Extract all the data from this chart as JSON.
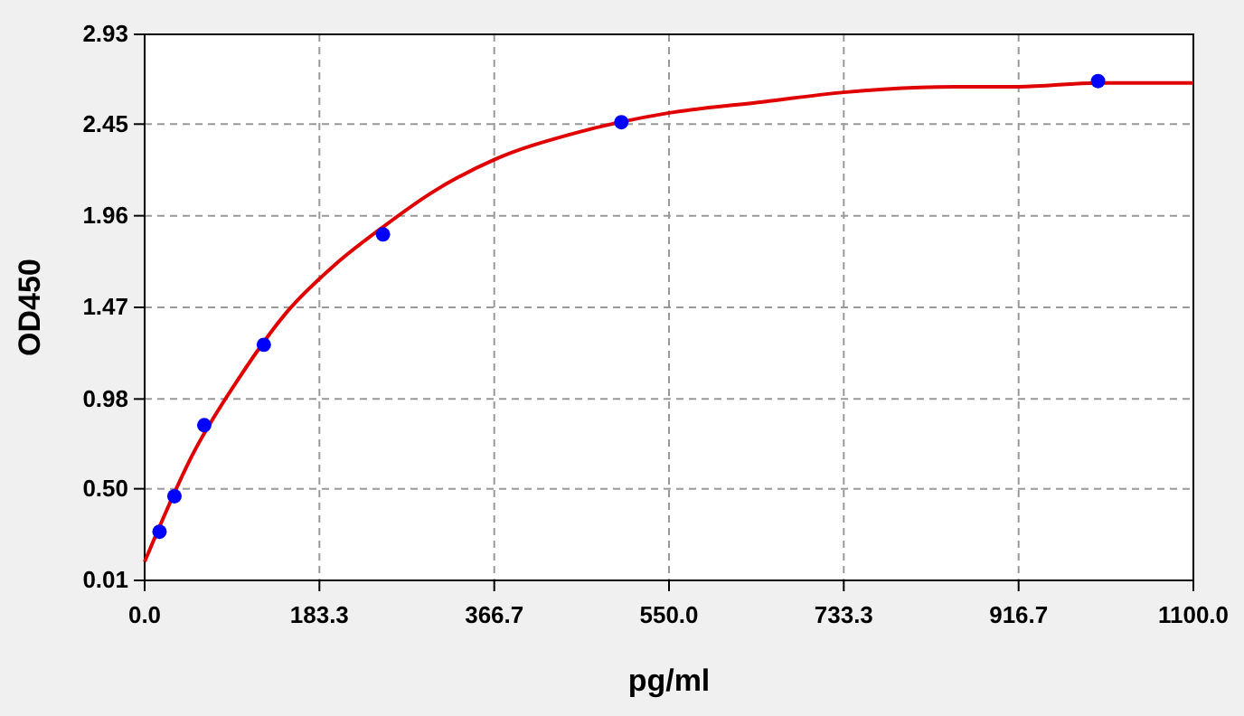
{
  "chart_data": {
    "type": "scatter",
    "xlabel": "pg/ml",
    "ylabel": "OD450",
    "xlim": [
      0,
      1100
    ],
    "xticks": [
      {
        "value": 0,
        "label": "0.0"
      },
      183.3,
      366.7,
      {
        "value": 550,
        "label": "550.0"
      },
      733.3,
      916.7,
      {
        "value": 1100,
        "label": "1100.0"
      }
    ],
    "ylim": [
      0.01,
      2.93
    ],
    "yticks": [
      0.01,
      {
        "value": 0.5,
        "label": "0.50"
      },
      0.98,
      1.47,
      1.96,
      2.45,
      2.93
    ],
    "grid": true,
    "marker": "circle",
    "series": [
      {
        "type": "line",
        "color": "#e00000",
        "line_style": "solid",
        "marker": "none",
        "x": [
          0,
          50,
          100,
          150,
          200,
          250,
          300,
          366.7,
          450,
          550,
          650,
          733.3,
          850,
          916.7,
          1000,
          1100
        ],
        "values": [
          0.11,
          0.68,
          1.1,
          1.45,
          1.7,
          1.9,
          2.08,
          2.26,
          2.4,
          2.51,
          2.57,
          2.62,
          2.65,
          2.65,
          2.67,
          2.67
        ]
      },
      {
        "color": "#0000ff",
        "x": [
          15.6,
          31.25,
          62.5,
          125,
          250,
          500,
          1000
        ],
        "values": [
          0.27,
          0.46,
          0.84,
          1.27,
          1.86,
          2.46,
          2.68
        ]
      }
    ]
  }
}
